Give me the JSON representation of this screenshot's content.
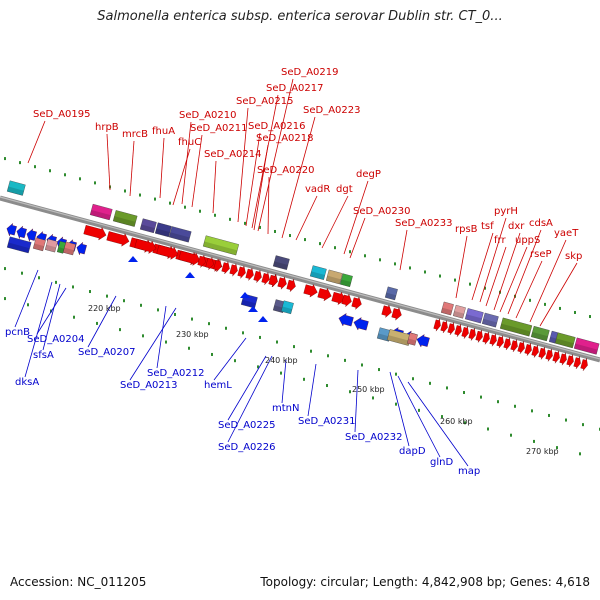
{
  "header": {
    "title": "Salmonella enterica subsp. enterica serovar Dublin str. CT_0..."
  },
  "footer": {
    "accession": "Accession: NC_011205",
    "summary": "Topology: circular; Length: 4,842,908 bp; Genes: 4,618"
  },
  "colors": {
    "forward_label": "#cc0000",
    "reverse_label": "#0000cc",
    "backbone": "#8c8c8c",
    "tick": "#2e8b2e"
  },
  "scale_labels": [
    "220 kbp",
    "230 kbp",
    "240 kbp",
    "250 kbp",
    "260 kbp",
    "270 kbp"
  ],
  "forward_genes": [
    "SeD_A0195",
    "hrpB",
    "mrcB",
    "fhuA",
    "fhuC",
    "SeD_A0210",
    "SeD_A0211",
    "SeD_A0214",
    "SeD_A0215",
    "SeD_A0216",
    "SeD_A0217",
    "SeD_A0218",
    "SeD_A0219",
    "SeD_A0220",
    "SeD_A0223",
    "vadR",
    "dgt",
    "degP",
    "SeD_A0230",
    "SeD_A0233",
    "rpsB",
    "tsf",
    "pyrH",
    "frr",
    "dxr",
    "uppS",
    "cdsA",
    "rseP",
    "yaeT",
    "skp"
  ],
  "reverse_genes": [
    "pcnB",
    "dksA",
    "sfsA",
    "SeD_A0204",
    "SeD_A0207",
    "SeD_A0212",
    "SeD_A0213",
    "hemL",
    "SeD_A0225",
    "SeD_A0226",
    "mtnN",
    "SeD_A0231",
    "SeD_A0232",
    "dapD",
    "glnD",
    "map"
  ]
}
